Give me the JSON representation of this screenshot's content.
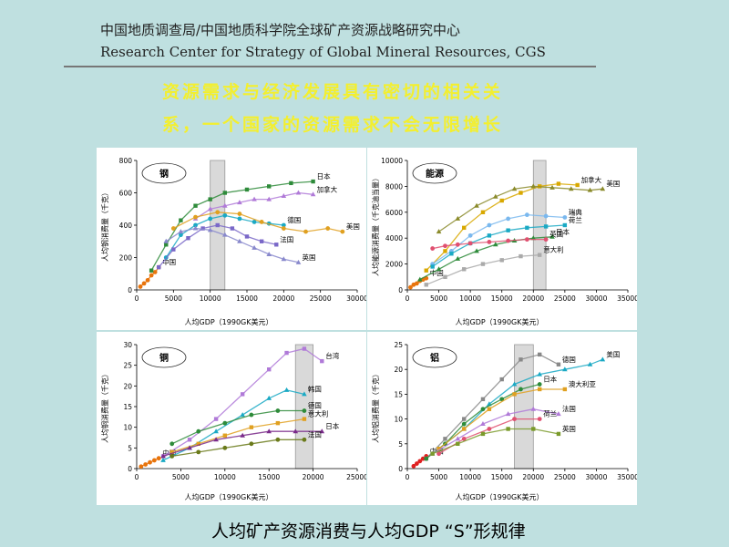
{
  "header": {
    "cn": "中国地质调查局/中国地质科学院全球矿产资源战略研究中心",
    "en": "Research Center for Strategy of Global Mineral Resources, CGS"
  },
  "headline": [
    "资源需求与经济发展具有密切的相关关",
    "系，一个国家的资源需求不会无限增长"
  ],
  "footer": "人均矿产资源消费与人均GDP “S”形规律",
  "chart_data": [
    {
      "type": "scatter",
      "title": "钢",
      "xlabel": "人均GDP（1990GK美元）",
      "ylabel": "人均钢消费量（千克）",
      "xlim": [
        0,
        30000
      ],
      "ylim": [
        0,
        800
      ],
      "xticks": [
        0,
        5000,
        10000,
        15000,
        20000,
        25000,
        30000
      ],
      "yticks": [
        0,
        200,
        400,
        600,
        800
      ],
      "band": [
        10000,
        12000
      ],
      "series": [
        {
          "name": "中国",
          "color": "#e8740c",
          "x": [
            500,
            1000,
            1500,
            2000,
            2500,
            3000
          ],
          "y": [
            20,
            40,
            60,
            90,
            110,
            140
          ]
        },
        {
          "name": "日本",
          "color": "#2e8b3a",
          "x": [
            2000,
            4000,
            6000,
            8000,
            10000,
            12000,
            15000,
            18000,
            21000,
            24000
          ],
          "y": [
            120,
            280,
            430,
            520,
            560,
            600,
            620,
            640,
            660,
            670
          ]
        },
        {
          "name": "加拿大",
          "color": "#b07ad8",
          "x": [
            8000,
            10000,
            12000,
            14000,
            16000,
            18000,
            20000,
            22000,
            24000
          ],
          "y": [
            440,
            500,
            520,
            540,
            560,
            560,
            580,
            600,
            590
          ]
        },
        {
          "name": "德国",
          "color": "#1aa9c4",
          "x": [
            4000,
            6000,
            8000,
            10000,
            12000,
            14000,
            16000,
            18000,
            20000
          ],
          "y": [
            200,
            340,
            400,
            440,
            460,
            440,
            420,
            410,
            400
          ]
        },
        {
          "name": "法国",
          "color": "#7a68c8",
          "x": [
            3000,
            5000,
            7000,
            9000,
            11000,
            13000,
            15000,
            17000,
            19000
          ],
          "y": [
            140,
            250,
            320,
            380,
            400,
            380,
            330,
            300,
            280
          ]
        },
        {
          "name": "英国",
          "color": "#8888cc",
          "x": [
            4000,
            6000,
            8000,
            10000,
            12000,
            14000,
            16000,
            18000,
            20000,
            22000
          ],
          "y": [
            300,
            360,
            380,
            370,
            340,
            300,
            260,
            220,
            190,
            170
          ]
        },
        {
          "name": "美国",
          "color": "#e0a020",
          "x": [
            5000,
            8000,
            11000,
            14000,
            17000,
            20000,
            23000,
            26000,
            28000
          ],
          "y": [
            380,
            450,
            480,
            470,
            420,
            380,
            360,
            380,
            360
          ]
        }
      ]
    },
    {
      "type": "scatter",
      "title": "能源",
      "xlabel": "人均GDP（1990GK美元）",
      "ylabel": "人均能源消费量（千克油当量）",
      "xlim": [
        0,
        35000
      ],
      "ylim": [
        0,
        10000
      ],
      "xticks": [
        0,
        5000,
        10000,
        15000,
        20000,
        25000,
        30000,
        35000
      ],
      "yticks": [
        0,
        2000,
        4000,
        6000,
        8000,
        10000
      ],
      "band": [
        20000,
        22000
      ],
      "series": [
        {
          "name": "中国",
          "color": "#e8740c",
          "x": [
            500,
            1000,
            1500,
            2000,
            2500,
            3000
          ],
          "y": [
            200,
            400,
            500,
            700,
            800,
            900
          ]
        },
        {
          "name": "加拿大",
          "color": "#d8a800",
          "x": [
            3000,
            6000,
            9000,
            12000,
            15000,
            18000,
            21000,
            24000,
            27000
          ],
          "y": [
            1500,
            3000,
            4800,
            6000,
            6900,
            7500,
            8000,
            8200,
            8100
          ]
        },
        {
          "name": "美国",
          "color": "#8a8a2a",
          "x": [
            5000,
            8000,
            11000,
            14000,
            17000,
            20000,
            23000,
            26000,
            29000,
            31000
          ],
          "y": [
            4500,
            5500,
            6500,
            7200,
            7800,
            8000,
            7900,
            7800,
            7700,
            7800
          ]
        },
        {
          "name": "瑞典",
          "color": "#7ab8ee",
          "x": [
            4000,
            7000,
            10000,
            13000,
            16000,
            19000,
            22000,
            25000
          ],
          "y": [
            2000,
            3000,
            4200,
            5000,
            5500,
            5800,
            5700,
            5600
          ]
        },
        {
          "name": "荷兰",
          "color": "#1aa9c4",
          "x": [
            4000,
            7000,
            10000,
            13000,
            16000,
            19000,
            22000,
            25000
          ],
          "y": [
            1800,
            2800,
            3600,
            4200,
            4600,
            4800,
            4900,
            5000
          ]
        },
        {
          "name": "日本",
          "color": "#2e8b3a",
          "x": [
            2000,
            5000,
            8000,
            11000,
            14000,
            17000,
            20000,
            23000
          ],
          "y": [
            800,
            1600,
            2400,
            3000,
            3500,
            3800,
            4000,
            4100
          ]
        },
        {
          "name": "英国",
          "color": "#e05070",
          "x": [
            4000,
            6000,
            8000,
            10000,
            13000,
            16000,
            19000,
            22000
          ],
          "y": [
            3200,
            3400,
            3500,
            3600,
            3700,
            3800,
            3900,
            3900
          ]
        },
        {
          "name": "意大利",
          "color": "#aaaaaa",
          "x": [
            3000,
            6000,
            9000,
            12000,
            15000,
            18000,
            21000
          ],
          "y": [
            400,
            1000,
            1600,
            2000,
            2300,
            2600,
            2700
          ]
        }
      ]
    },
    {
      "type": "scatter",
      "title": "铜",
      "xlabel": "人均GDP（1990GK美元）",
      "ylabel": "人均铜消费量（千克）",
      "xlim": [
        0,
        25000
      ],
      "ylim": [
        0,
        30
      ],
      "xticks": [
        0,
        5000,
        10000,
        15000,
        20000,
        25000
      ],
      "yticks": [
        0,
        5,
        10,
        15,
        20,
        25,
        30
      ],
      "band": [
        18000,
        20000
      ],
      "series": [
        {
          "name": "中国",
          "color": "#e8740c",
          "x": [
            500,
            1000,
            1500,
            2000,
            2500
          ],
          "y": [
            0.5,
            1,
            1.5,
            2,
            2.5
          ]
        },
        {
          "name": "台湾",
          "color": "#b07ad8",
          "x": [
            3000,
            6000,
            9000,
            12000,
            15000,
            17000,
            19000,
            21000
          ],
          "y": [
            3,
            7,
            12,
            18,
            24,
            28,
            29,
            26
          ]
        },
        {
          "name": "韩国",
          "color": "#1aa9c4",
          "x": [
            3000,
            6000,
            9000,
            12000,
            15000,
            17000,
            19000
          ],
          "y": [
            2,
            5,
            9,
            13,
            17,
            19,
            18
          ]
        },
        {
          "name": "德国",
          "color": "#2e8b3a",
          "x": [
            4000,
            7000,
            10000,
            13000,
            16000,
            19000
          ],
          "y": [
            6,
            9,
            11,
            13,
            14,
            14
          ]
        },
        {
          "name": "意大利",
          "color": "#e0a020",
          "x": [
            4000,
            7000,
            10000,
            13000,
            16000,
            19000
          ],
          "y": [
            4,
            6,
            8,
            10,
            11,
            12
          ]
        },
        {
          "name": "日本",
          "color": "#7a2a8a",
          "x": [
            3000,
            6000,
            9000,
            12000,
            15000,
            18000,
            21000
          ],
          "y": [
            3,
            5,
            7,
            8,
            9,
            9,
            9
          ]
        },
        {
          "name": "法国",
          "color": "#6a7a1a",
          "x": [
            4000,
            7000,
            10000,
            13000,
            16000,
            19000
          ],
          "y": [
            3,
            4,
            5,
            6,
            7,
            7
          ]
        }
      ]
    },
    {
      "type": "scatter",
      "title": "铝",
      "xlabel": "人均GDP（1990GK美元）",
      "ylabel": "人均铝消费量（千克）",
      "xlim": [
        0,
        35000
      ],
      "ylim": [
        0,
        25
      ],
      "xticks": [
        0,
        5000,
        10000,
        15000,
        20000,
        25000,
        30000,
        35000
      ],
      "yticks": [
        0,
        5,
        10,
        15,
        20,
        25
      ],
      "band": [
        17000,
        20000
      ],
      "series": [
        {
          "name": "中国",
          "color": "#e02020",
          "x": [
            1000,
            1500,
            2000,
            2500,
            3000
          ],
          "y": [
            0.5,
            1,
            1.5,
            2,
            2.5
          ]
        },
        {
          "name": "德国",
          "color": "#888888",
          "x": [
            3000,
            6000,
            9000,
            12000,
            15000,
            18000,
            21000,
            24000
          ],
          "y": [
            2,
            6,
            10,
            14,
            18,
            22,
            23,
            21
          ]
        },
        {
          "name": "美国",
          "color": "#1aa9c4",
          "x": [
            5000,
            9000,
            13000,
            17000,
            21000,
            25000,
            29000,
            31000
          ],
          "y": [
            4,
            8,
            13,
            17,
            19,
            20,
            21,
            22
          ]
        },
        {
          "name": "日本",
          "color": "#2e8b3a",
          "x": [
            3000,
            6000,
            9000,
            12000,
            15000,
            18000,
            21000
          ],
          "y": [
            2,
            5,
            9,
            12,
            14,
            16,
            17
          ]
        },
        {
          "name": "澳大利亚",
          "color": "#e0a020",
          "x": [
            5000,
            9000,
            13000,
            17000,
            21000,
            25000
          ],
          "y": [
            4,
            8,
            12,
            15,
            16,
            16
          ]
        },
        {
          "name": "法国",
          "color": "#b07ad8",
          "x": [
            4000,
            8000,
            12000,
            16000,
            20000,
            24000
          ],
          "y": [
            3,
            6,
            9,
            11,
            12,
            11
          ]
        },
        {
          "name": "荷兰",
          "color": "#e05070",
          "x": [
            5000,
            9000,
            13000,
            17000,
            21000
          ],
          "y": [
            3,
            6,
            8,
            10,
            10
          ]
        },
        {
          "name": "英国",
          "color": "#7a9a2a",
          "x": [
            4000,
            8000,
            12000,
            16000,
            20000,
            24000
          ],
          "y": [
            3,
            5,
            7,
            8,
            8,
            7
          ]
        }
      ]
    }
  ]
}
